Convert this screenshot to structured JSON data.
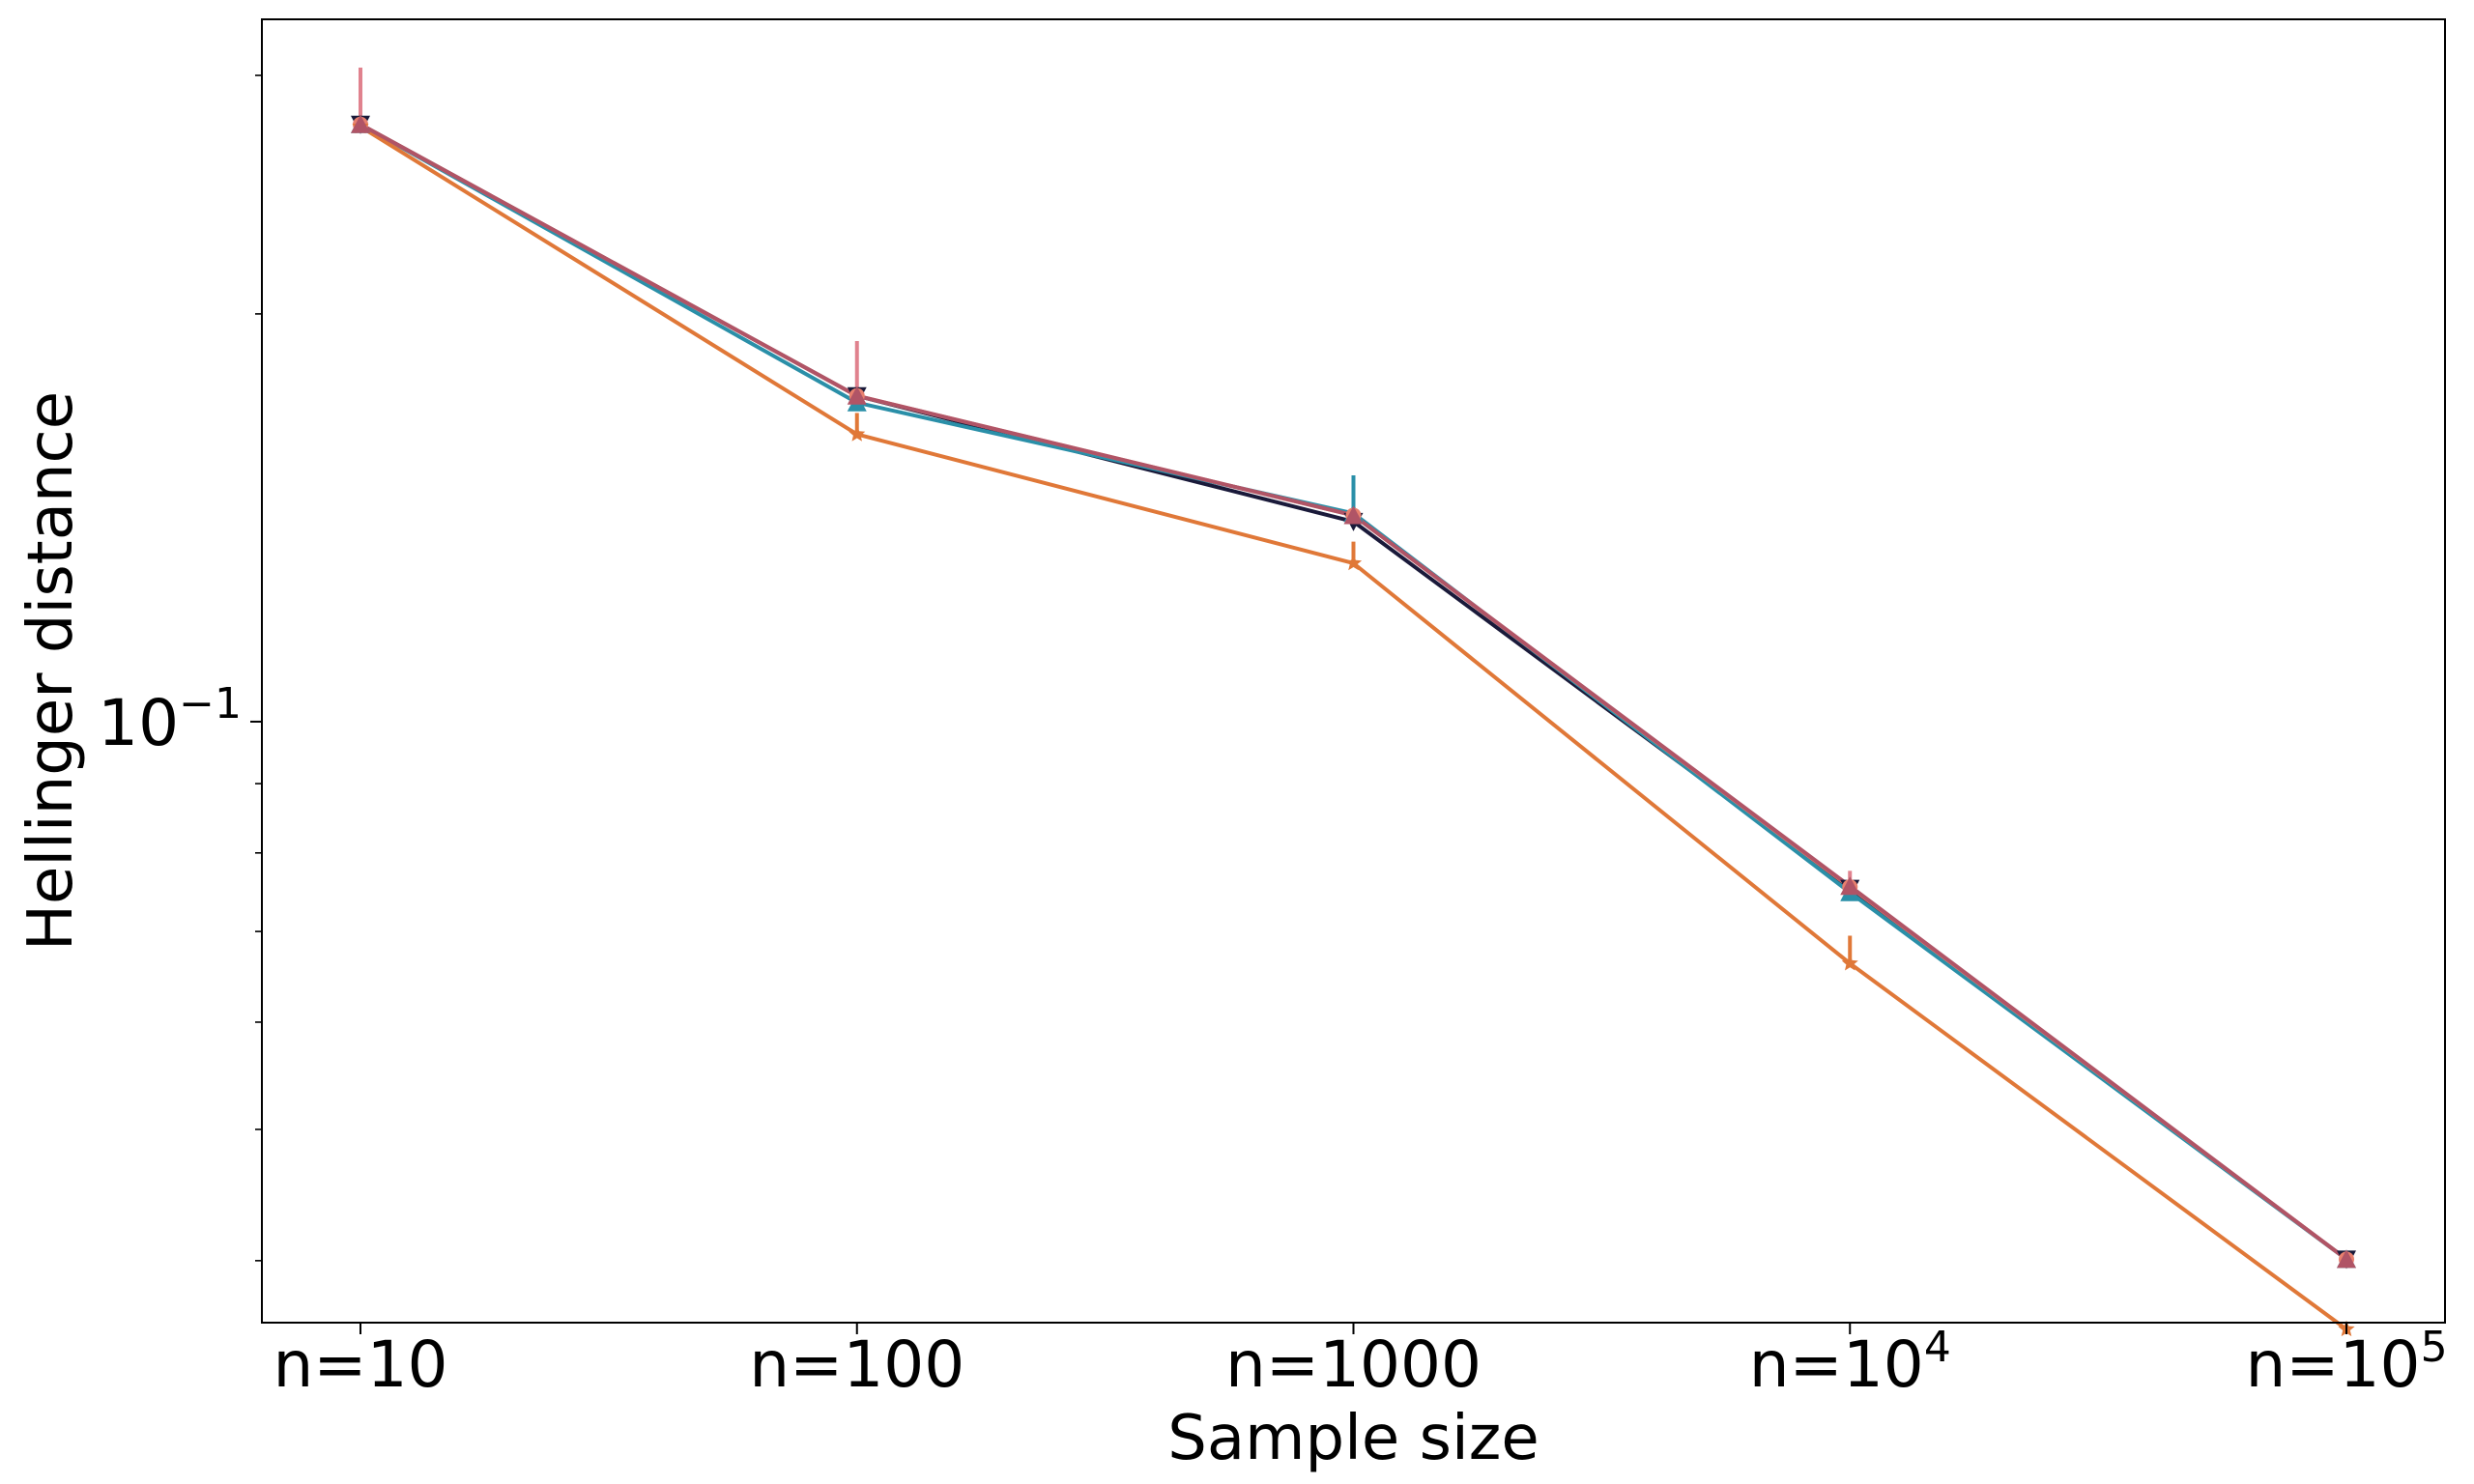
{
  "chart_data": {
    "type": "line",
    "xlabel": "Sample size",
    "ylabel": "Hellinger distance",
    "xscale": "log",
    "yscale": "log",
    "x": [
      10,
      100,
      1000,
      10000,
      100000
    ],
    "x_tick_labels": [
      {
        "base": "n=10",
        "sup": ""
      },
      {
        "base": "n=100",
        "sup": ""
      },
      {
        "base": "n=1000",
        "sup": ""
      },
      {
        "base": "n=10",
        "sup": "4"
      },
      {
        "base": "n=10",
        "sup": "5"
      }
    ],
    "y_major_ticks": [
      {
        "value": 0.1,
        "base": "10",
        "sup": "−1"
      }
    ],
    "y_minor_ticks": [
      0.04,
      0.05,
      0.06,
      0.07,
      0.08,
      0.09,
      0.2,
      0.3
    ],
    "ylim": [
      0.036,
      0.33
    ],
    "grid": false,
    "legend": "none",
    "series": [
      {
        "color": "#1a1a3a",
        "marker": "tri-down",
        "values": [
          0.276,
          0.174,
          0.1405,
          0.0753,
          0.0401
        ],
        "err_up": [
          0.0,
          0.0,
          0.0,
          0.0,
          0.0
        ]
      },
      {
        "color": "#2a8fa8",
        "marker": "tri-up",
        "values": [
          0.276,
          0.172,
          0.1425,
          0.0748,
          0.0401
        ],
        "err_up": [
          0.0,
          0.0,
          0.0095,
          0.0,
          0.0
        ]
      },
      {
        "color": "#e8806e",
        "marker": "circle",
        "values": [
          0.276,
          0.174,
          0.142,
          0.0755,
          0.0401
        ],
        "err_up": [
          0.0,
          0.0,
          0.0,
          0.0,
          0.0
        ]
      },
      {
        "color": "#e07838",
        "marker": "star",
        "values": [
          0.275,
          0.163,
          0.1309,
          0.0663,
          0.0356
        ],
        "err_up": [
          0.0,
          0.0,
          0.0,
          0.0,
          0.0
        ]
      },
      {
        "color": "#b05466",
        "marker": "tri-up",
        "values": [
          0.276,
          0.174,
          0.142,
          0.0756,
          0.0401
        ],
        "err_up": [
          0.0,
          0.0,
          0.0,
          0.0,
          0.0
        ]
      },
      {
        "color": "#e0828e",
        "marker": "none",
        "values": [
          0.276,
          0.174,
          0.142,
          0.0756,
          0.0401
        ],
        "err_up": [
          0.028,
          0.017,
          0.0,
          0.002,
          0.0
        ]
      },
      {
        "color": "#e07838",
        "marker": "none",
        "values": [
          0.275,
          0.163,
          0.1309,
          0.0663,
          0.0356
        ],
        "err_up": [
          0.0,
          0.006,
          0.0049,
          0.0032,
          0.0
        ]
      }
    ]
  }
}
